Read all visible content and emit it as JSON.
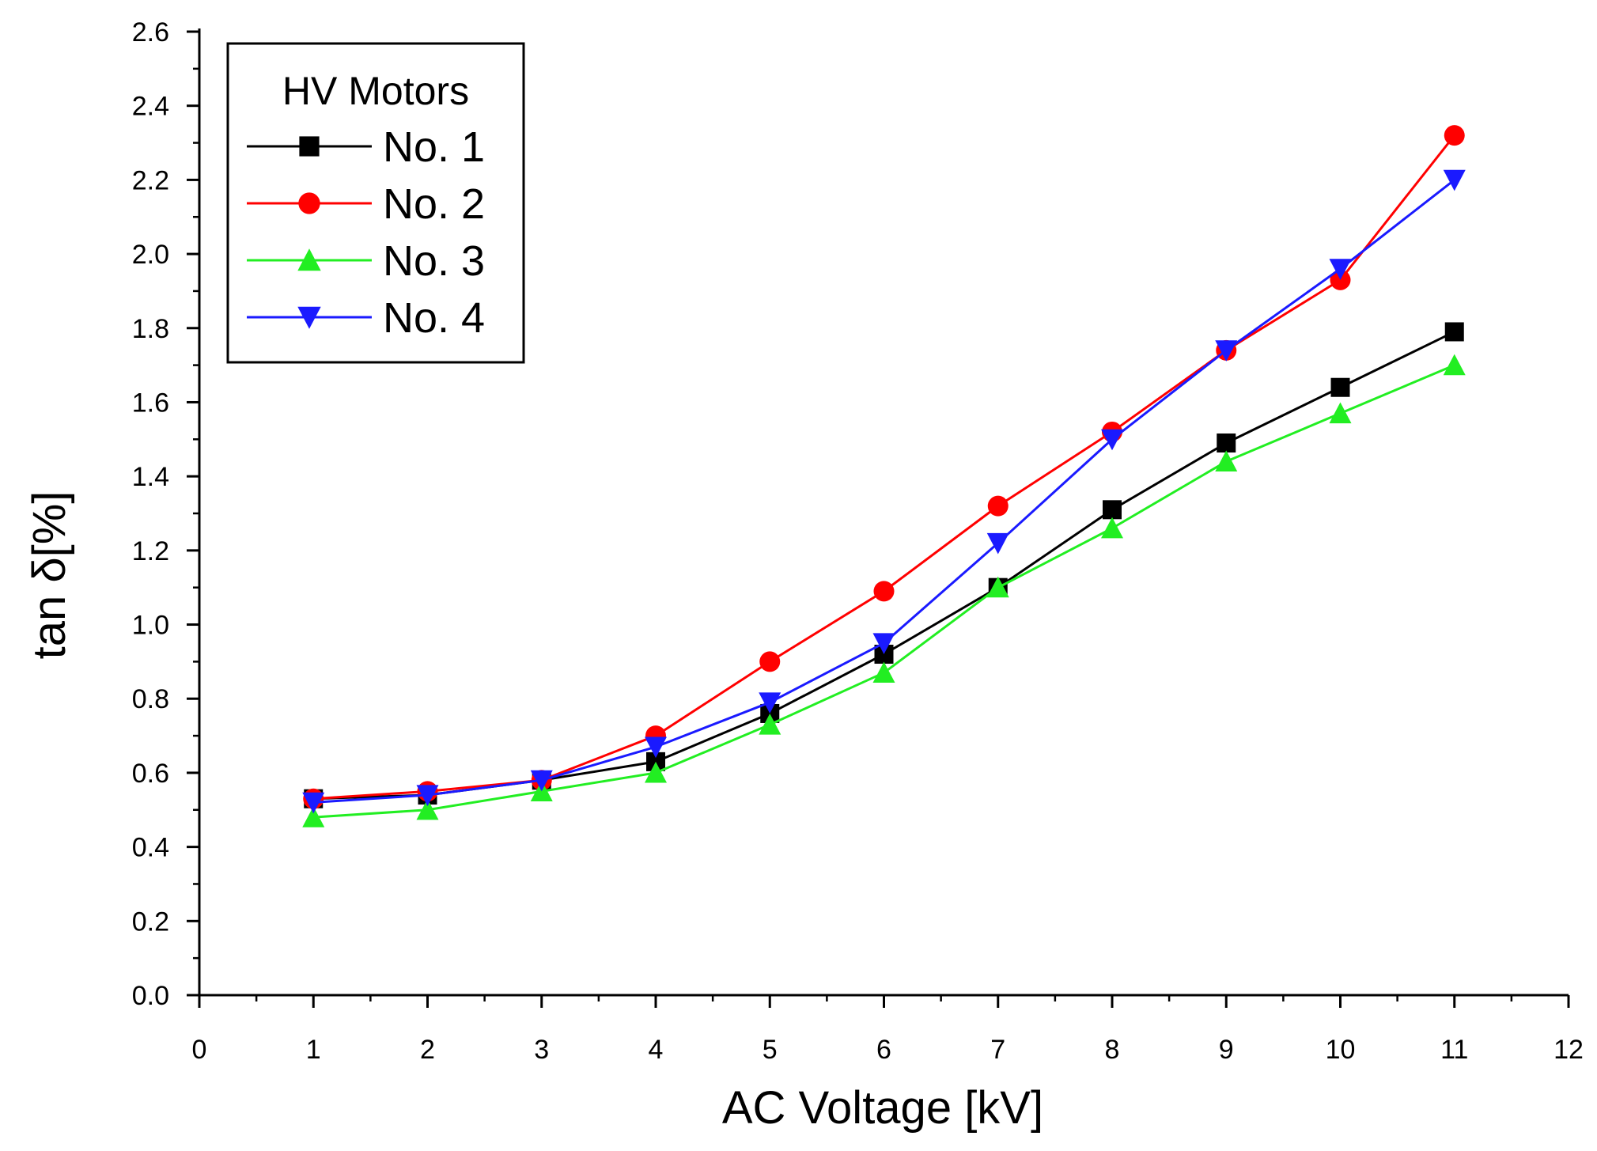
{
  "chart_data": {
    "type": "line",
    "title": "",
    "xlabel": "AC Voltage [kV]",
    "ylabel": "tan δ[%]",
    "xlim": [
      0,
      12
    ],
    "ylim": [
      0.0,
      2.6
    ],
    "x_ticks": [
      "0",
      "1",
      "2",
      "3",
      "4",
      "5",
      "6",
      "7",
      "8",
      "9",
      "10",
      "11",
      "12"
    ],
    "y_ticks": [
      "0.0",
      "0.2",
      "0.4",
      "0.6",
      "0.8",
      "1.0",
      "1.2",
      "1.4",
      "1.6",
      "1.8",
      "2.0",
      "2.2",
      "2.4",
      "2.6"
    ],
    "grid": false,
    "legend": {
      "title": "HV Motors",
      "position": "top-left"
    },
    "x": [
      1,
      2,
      3,
      4,
      5,
      6,
      7,
      8,
      9,
      10,
      11
    ],
    "series": [
      {
        "name": "No. 1",
        "color": "#000000",
        "marker": "square",
        "values": [
          0.53,
          0.54,
          0.58,
          0.63,
          0.76,
          0.92,
          1.1,
          1.31,
          1.49,
          1.64,
          1.79
        ]
      },
      {
        "name": "No. 2",
        "color": "#ff0000",
        "marker": "circle",
        "values": [
          0.53,
          0.55,
          0.58,
          0.7,
          0.9,
          1.09,
          1.32,
          1.52,
          1.74,
          1.93,
          2.32
        ]
      },
      {
        "name": "No. 3",
        "color": "#22ee22",
        "marker": "triangle-up",
        "values": [
          0.48,
          0.5,
          0.55,
          0.6,
          0.73,
          0.87,
          1.1,
          1.26,
          1.44,
          1.57,
          1.7
        ]
      },
      {
        "name": "No. 4",
        "color": "#1a1aff",
        "marker": "triangle-down",
        "values": [
          0.52,
          0.54,
          0.58,
          0.67,
          0.79,
          0.95,
          1.22,
          1.5,
          1.74,
          1.96,
          2.2
        ]
      }
    ]
  }
}
